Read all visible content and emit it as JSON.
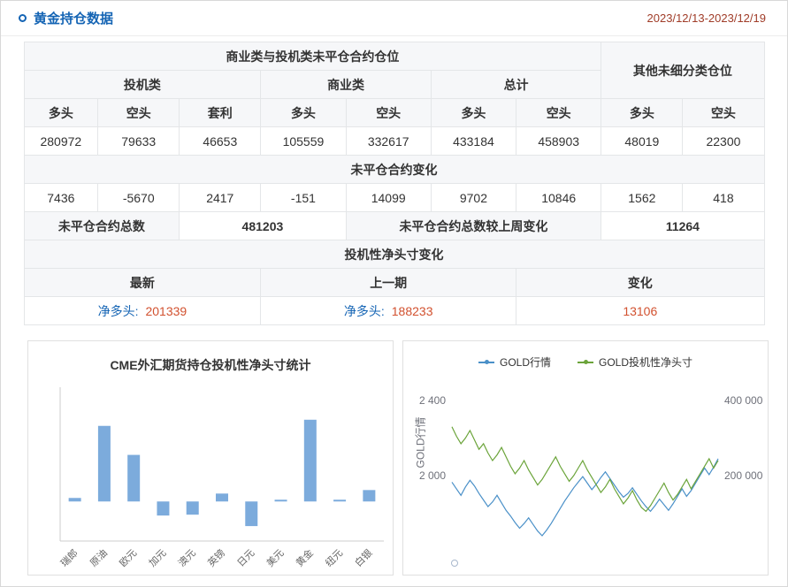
{
  "page": {
    "title": "黄金持仓数据",
    "date_range": "2023/12/13-2023/12/19"
  },
  "colors": {
    "accent_blue": "#1464b4",
    "number_orange": "#d2512f",
    "date_red": "#a03c28",
    "bar_blue": "#7cabdc",
    "line_blue": "#4a90c8",
    "line_green": "#6ba43a"
  },
  "table": {
    "group_main": "商业类与投机类未平仓合约仓位",
    "group_other": "其他未细分类仓位",
    "categories": [
      "投机类",
      "商业类",
      "总计"
    ],
    "col_headers": [
      "多头",
      "空头",
      "套利",
      "多头",
      "空头",
      "多头",
      "空头",
      "多头",
      "空头"
    ],
    "positions": [
      "280972",
      "79633",
      "46653",
      "105559",
      "332617",
      "433184",
      "458903",
      "48019",
      "22300"
    ],
    "change_title": "未平仓合约变化",
    "changes": [
      "7436",
      "-5670",
      "2417",
      "-151",
      "14099",
      "9702",
      "10846",
      "1562",
      "418"
    ],
    "total_label": "未平仓合约总数",
    "total_value": "481203",
    "weekly_change_label": "未平仓合约总数较上周变化",
    "weekly_change_value": "11264",
    "net_title": "投机性净头寸变化",
    "net_headers": [
      "最新",
      "上一期",
      "变化"
    ],
    "net_rows": [
      {
        "label": "净多头:",
        "value": "201339"
      },
      {
        "label": "净多头:",
        "value": "188233"
      },
      {
        "label": "",
        "value": "13106"
      }
    ]
  },
  "chart_data": [
    {
      "type": "bar",
      "title": "CME外汇期货持仓投机性净头寸统计",
      "categories": [
        "瑞郎",
        "原油",
        "欧元",
        "加元",
        "澳元",
        "英镑",
        "日元",
        "美元",
        "黄金",
        "纽元",
        "白银"
      ],
      "values": [
        4,
        86,
        53,
        -16,
        -15,
        9,
        -28,
        2,
        93,
        2,
        13
      ],
      "value_units": "relative estimate (y-axis tick labels not visible in screenshot)",
      "ylim": [
        -45,
        130
      ],
      "color": "#7cabdc",
      "grid": false,
      "legend_position": "none"
    },
    {
      "type": "line",
      "title": "",
      "legend_position": "top",
      "grid": false,
      "y_left": {
        "label": "GOLD行情",
        "min": 1600,
        "max": 2400,
        "ticks": [
          {
            "label": "2 400",
            "value": 2400
          },
          {
            "label": "2 000",
            "value": 2000
          }
        ]
      },
      "y_right": {
        "label": "",
        "min": 0,
        "max": 400000,
        "ticks": [
          {
            "label": "400 000",
            "value": 400000
          },
          {
            "label": "200 000",
            "value": 200000
          }
        ]
      },
      "series": [
        {
          "name": "GOLD行情",
          "axis": "left",
          "color": "#4a90c8",
          "values": [
            1965,
            1930,
            1895,
            1940,
            1975,
            1945,
            1905,
            1870,
            1835,
            1860,
            1895,
            1855,
            1815,
            1785,
            1750,
            1720,
            1745,
            1775,
            1740,
            1705,
            1680,
            1710,
            1745,
            1785,
            1825,
            1865,
            1900,
            1935,
            1965,
            1995,
            1960,
            1925,
            1955,
            1990,
            2020,
            1985,
            1950,
            1915,
            1885,
            1905,
            1935,
            1900,
            1865,
            1835,
            1810,
            1840,
            1875,
            1845,
            1815,
            1850,
            1890,
            1930,
            1890,
            1920,
            1960,
            2000,
            2040,
            2005,
            2045,
            2090
          ]
        },
        {
          "name": "GOLD投机性净头寸",
          "axis": "right",
          "color": "#6ba43a",
          "values": [
            330000,
            305000,
            285000,
            300000,
            320000,
            295000,
            270000,
            285000,
            260000,
            240000,
            255000,
            275000,
            250000,
            225000,
            205000,
            220000,
            240000,
            215000,
            195000,
            175000,
            190000,
            210000,
            230000,
            250000,
            225000,
            205000,
            185000,
            200000,
            220000,
            240000,
            215000,
            195000,
            175000,
            155000,
            170000,
            190000,
            165000,
            145000,
            125000,
            140000,
            160000,
            135000,
            115000,
            105000,
            120000,
            140000,
            160000,
            180000,
            155000,
            135000,
            150000,
            170000,
            190000,
            165000,
            185000,
            205000,
            225000,
            245000,
            220000,
            240000
          ]
        }
      ]
    }
  ]
}
